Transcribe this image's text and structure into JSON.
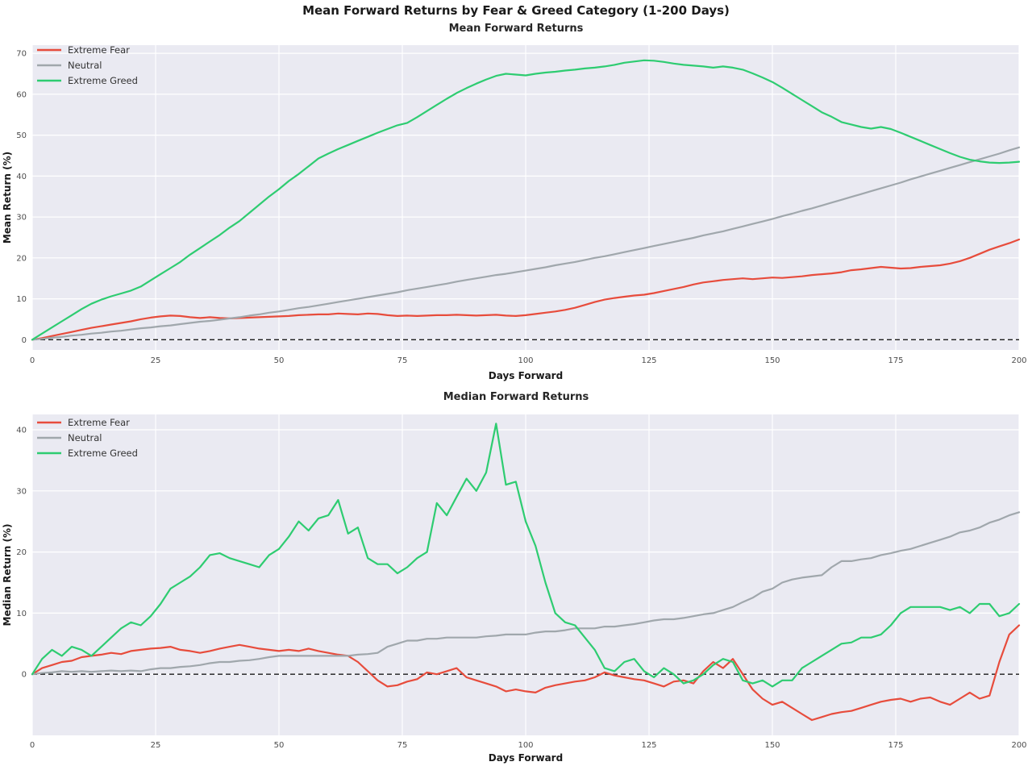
{
  "figure": {
    "suptitle": "Mean Forward Returns by Fear & Greed Category (1-200 Days)"
  },
  "style": {
    "plot_bg": "#eaeaf2",
    "grid_color": "#ffffff",
    "zero_line": "#1a1a1a"
  },
  "chart_data": [
    {
      "type": "line",
      "title": "Mean Forward Returns",
      "xlabel": "Days Forward",
      "ylabel": "Mean Return (%)",
      "xlim": [
        0,
        200
      ],
      "ylim": [
        -2.5,
        72
      ],
      "x_ticks": [
        0,
        25,
        50,
        75,
        100,
        125,
        150,
        175,
        200
      ],
      "y_ticks": [
        0,
        10,
        20,
        30,
        40,
        50,
        60,
        70
      ],
      "grid": true,
      "zero_line": true,
      "legend_position": "upper-left",
      "x_step": 2,
      "series": [
        {
          "name": "Extreme Fear",
          "color": "#e74c3c",
          "y": [
            0,
            0.4,
            0.9,
            1.4,
            1.9,
            2.4,
            2.9,
            3.3,
            3.7,
            4.1,
            4.5,
            5,
            5.4,
            5.7,
            5.9,
            5.8,
            5.5,
            5.3,
            5.5,
            5.3,
            5.2,
            5.3,
            5.4,
            5.5,
            5.6,
            5.7,
            5.8,
            6,
            6.1,
            6.2,
            6.2,
            6.4,
            6.3,
            6.2,
            6.4,
            6.3,
            6,
            5.8,
            5.9,
            5.8,
            5.9,
            6,
            6,
            6.1,
            6,
            5.9,
            6,
            6.1,
            5.9,
            5.8,
            6,
            6.3,
            6.6,
            6.9,
            7.3,
            7.8,
            8.5,
            9.2,
            9.8,
            10.2,
            10.5,
            10.8,
            11,
            11.4,
            11.9,
            12.4,
            12.9,
            13.5,
            14,
            14.3,
            14.6,
            14.8,
            15,
            14.8,
            15,
            15.2,
            15.1,
            15.3,
            15.5,
            15.8,
            16,
            16.2,
            16.5,
            17,
            17.2,
            17.5,
            17.8,
            17.6,
            17.4,
            17.5,
            17.8,
            18,
            18.2,
            18.6,
            19.2,
            20,
            21,
            22,
            22.8,
            23.6,
            24.5
          ]
        },
        {
          "name": "Neutral",
          "color": "#a0a7ac",
          "y": [
            0,
            0.2,
            0.5,
            0.7,
            1,
            1.2,
            1.5,
            1.7,
            2,
            2.2,
            2.5,
            2.8,
            3,
            3.3,
            3.5,
            3.8,
            4.1,
            4.4,
            4.6,
            4.9,
            5.2,
            5.5,
            5.9,
            6.2,
            6.6,
            6.9,
            7.3,
            7.7,
            8,
            8.4,
            8.8,
            9.2,
            9.6,
            10,
            10.4,
            10.8,
            11.2,
            11.6,
            12.1,
            12.5,
            12.9,
            13.3,
            13.7,
            14.2,
            14.6,
            15,
            15.4,
            15.8,
            16.1,
            16.5,
            16.9,
            17.3,
            17.7,
            18.2,
            18.6,
            19,
            19.5,
            20,
            20.4,
            20.9,
            21.4,
            21.9,
            22.4,
            22.9,
            23.4,
            23.9,
            24.4,
            24.9,
            25.5,
            26,
            26.5,
            27.1,
            27.7,
            28.3,
            28.9,
            29.5,
            30.2,
            30.8,
            31.5,
            32.1,
            32.8,
            33.5,
            34.2,
            34.9,
            35.6,
            36.3,
            37,
            37.7,
            38.4,
            39.2,
            39.9,
            40.6,
            41.3,
            42,
            42.7,
            43.4,
            44.1,
            44.8,
            45.5,
            46.3,
            47
          ]
        },
        {
          "name": "Extreme Greed",
          "color": "#2ecc71",
          "y": [
            0,
            1.5,
            3,
            4.5,
            6,
            7.5,
            8.8,
            9.8,
            10.6,
            11.3,
            12,
            13,
            14.5,
            16,
            17.5,
            19,
            20.8,
            22.4,
            24,
            25.6,
            27.4,
            29,
            31,
            33,
            35,
            36.8,
            38.8,
            40.5,
            42.4,
            44.3,
            45.5,
            46.6,
            47.6,
            48.6,
            49.6,
            50.6,
            51.5,
            52.4,
            53,
            54.4,
            55.9,
            57.4,
            58.9,
            60.3,
            61.5,
            62.6,
            63.6,
            64.5,
            65,
            64.8,
            64.6,
            65,
            65.3,
            65.5,
            65.8,
            66,
            66.3,
            66.5,
            66.8,
            67.2,
            67.7,
            68,
            68.3,
            68.2,
            67.9,
            67.5,
            67.2,
            67,
            66.8,
            66.5,
            66.8,
            66.5,
            66,
            65.1,
            64.1,
            63,
            61.6,
            60.1,
            58.6,
            57.1,
            55.6,
            54.5,
            53.2,
            52.6,
            52,
            51.6,
            52,
            51.5,
            50.6,
            49.6,
            48.6,
            47.6,
            46.6,
            45.6,
            44.7,
            44,
            43.6,
            43.3,
            43.2,
            43.3,
            43.5
          ]
        }
      ]
    },
    {
      "type": "line",
      "title": "Median Forward Returns",
      "xlabel": "Days Forward",
      "ylabel": "Median Return (%)",
      "xlim": [
        0,
        200
      ],
      "ylim": [
        -10,
        42.5
      ],
      "x_ticks": [
        0,
        25,
        50,
        75,
        100,
        125,
        150,
        175,
        200
      ],
      "y_ticks": [
        0,
        10,
        20,
        30,
        40
      ],
      "grid": true,
      "zero_line": true,
      "legend_position": "upper-left",
      "x_step": 2,
      "series": [
        {
          "name": "Extreme Fear",
          "color": "#e74c3c",
          "y": [
            0,
            1,
            1.5,
            2,
            2.2,
            2.8,
            3,
            3.2,
            3.5,
            3.3,
            3.8,
            4,
            4.2,
            4.3,
            4.5,
            4,
            3.8,
            3.5,
            3.8,
            4.2,
            4.5,
            4.8,
            4.5,
            4.2,
            4,
            3.8,
            4,
            3.8,
            4.2,
            3.8,
            3.5,
            3.2,
            3,
            2,
            0.5,
            -1,
            -2,
            -1.8,
            -1.2,
            -0.8,
            0.3,
            0,
            0.5,
            1,
            -0.5,
            -1,
            -1.5,
            -2,
            -2.8,
            -2.5,
            -2.8,
            -3,
            -2.2,
            -1.8,
            -1.5,
            -1.2,
            -1,
            -0.5,
            0.3,
            -0.2,
            -0.5,
            -0.8,
            -1,
            -1.5,
            -2,
            -1.2,
            -1,
            -1.5,
            0.5,
            2,
            1,
            2.5,
            0,
            -2.5,
            -4,
            -5,
            -4.5,
            -5.5,
            -6.5,
            -7.5,
            -7,
            -6.5,
            -6.2,
            -6,
            -5.5,
            -5,
            -4.5,
            -4.2,
            -4,
            -4.5,
            -4,
            -3.8,
            -4.5,
            -5,
            -4,
            -3,
            -4,
            -3.5,
            2,
            6.5,
            8
          ]
        },
        {
          "name": "Neutral",
          "color": "#a0a7ac",
          "y": [
            0,
            0.2,
            0.3,
            0.5,
            0.4,
            0.5,
            0.4,
            0.5,
            0.6,
            0.5,
            0.6,
            0.5,
            0.8,
            1,
            1,
            1.2,
            1.3,
            1.5,
            1.8,
            2,
            2,
            2.2,
            2.3,
            2.5,
            2.8,
            3,
            3,
            3,
            3,
            3,
            3,
            3,
            3,
            3.2,
            3.3,
            3.5,
            4.5,
            5,
            5.5,
            5.5,
            5.8,
            5.8,
            6,
            6,
            6,
            6,
            6.2,
            6.3,
            6.5,
            6.5,
            6.5,
            6.8,
            7,
            7,
            7.2,
            7.5,
            7.5,
            7.5,
            7.8,
            7.8,
            8,
            8.2,
            8.5,
            8.8,
            9,
            9,
            9.2,
            9.5,
            9.8,
            10,
            10.5,
            11,
            11.8,
            12.5,
            13.5,
            14,
            15,
            15.5,
            15.8,
            16,
            16.2,
            17.5,
            18.5,
            18.5,
            18.8,
            19,
            19.5,
            19.8,
            20.2,
            20.5,
            21,
            21.5,
            22,
            22.5,
            23.2,
            23.5,
            24,
            24.8,
            25.3,
            26,
            26.5
          ]
        },
        {
          "name": "Extreme Greed",
          "color": "#2ecc71",
          "y": [
            0,
            2.5,
            4,
            3,
            4.5,
            4,
            3,
            4.5,
            6,
            7.5,
            8.5,
            8,
            9.5,
            11.5,
            14,
            15,
            16,
            17.5,
            19.5,
            19.8,
            19,
            18.5,
            18,
            17.5,
            19.5,
            20.5,
            22.5,
            25,
            23.5,
            25.5,
            26,
            28.5,
            23,
            24,
            19,
            18,
            18,
            16.5,
            17.5,
            19,
            20,
            28,
            26,
            29,
            32,
            30,
            33,
            41,
            31,
            31.5,
            25,
            21,
            15,
            10,
            8.5,
            8,
            6,
            4,
            1,
            0.5,
            2,
            2.5,
            0.5,
            -0.5,
            1,
            0,
            -1.5,
            -1,
            0,
            1.5,
            2.5,
            2,
            -1,
            -1.5,
            -1,
            -2,
            -1,
            -1,
            1,
            2,
            3,
            4,
            5,
            5.2,
            6,
            6,
            6.5,
            8,
            10,
            11,
            11,
            11,
            11,
            10.5,
            11,
            10,
            11.5,
            11.5,
            9.5,
            10,
            11.5
          ]
        }
      ]
    }
  ]
}
